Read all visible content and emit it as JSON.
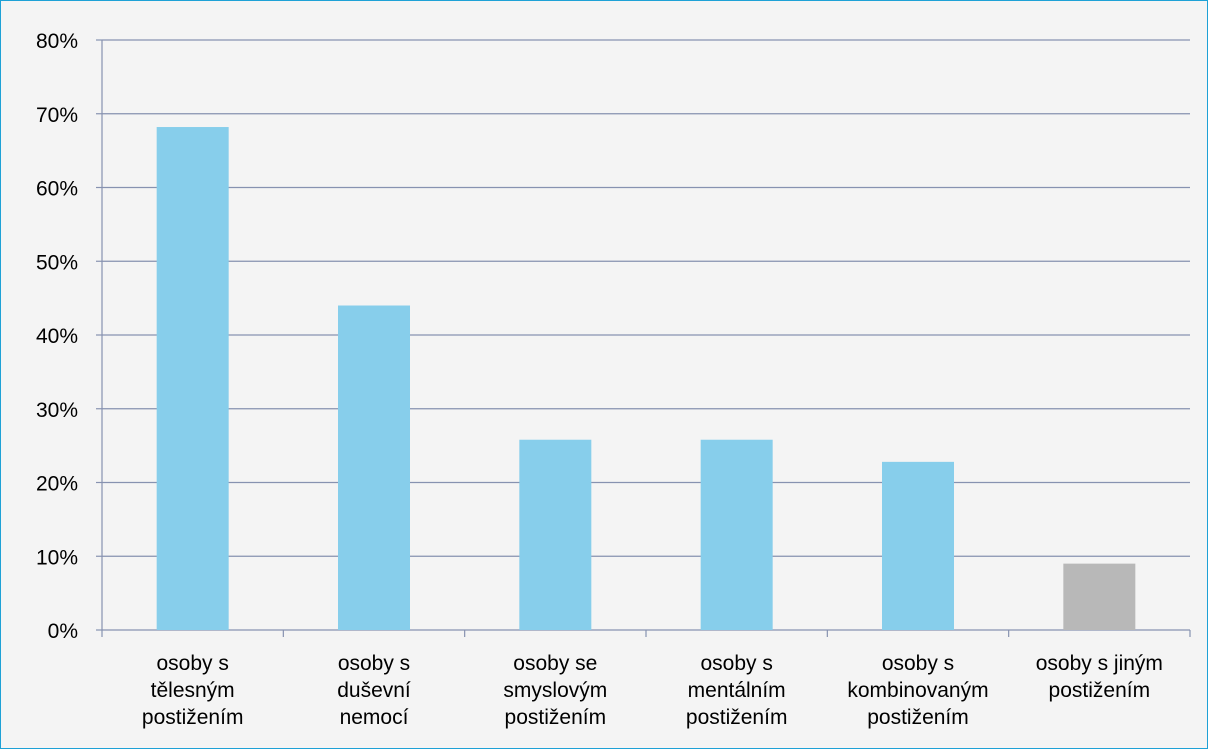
{
  "chart_data": {
    "type": "bar",
    "title": "",
    "xlabel": "",
    "ylabel": "",
    "ylim": [
      0,
      0.8
    ],
    "y_ticks": [
      0,
      0.1,
      0.2,
      0.3,
      0.4,
      0.5,
      0.6,
      0.7,
      0.8
    ],
    "y_tick_labels": [
      "0%",
      "10%",
      "20%",
      "30%",
      "40%",
      "50%",
      "60%",
      "70%",
      "80%"
    ],
    "grid": true,
    "legend": "none",
    "categories": [
      [
        "osoby s",
        "tělesným",
        "postižením"
      ],
      [
        "osoby s",
        "duševní",
        "nemocí"
      ],
      [
        "osoby se",
        "smyslovým",
        "postižením"
      ],
      [
        "osoby s",
        "mentálním",
        "postižením"
      ],
      [
        "osoby s",
        "kombinovaným",
        "postižením"
      ],
      [
        "osoby s jiným",
        "postižením"
      ]
    ],
    "values": [
      0.682,
      0.44,
      0.258,
      0.258,
      0.228,
      0.09
    ],
    "colors": [
      "#87ceeb",
      "#87ceeb",
      "#87ceeb",
      "#87ceeb",
      "#87ceeb",
      "#b8b8b8"
    ]
  }
}
